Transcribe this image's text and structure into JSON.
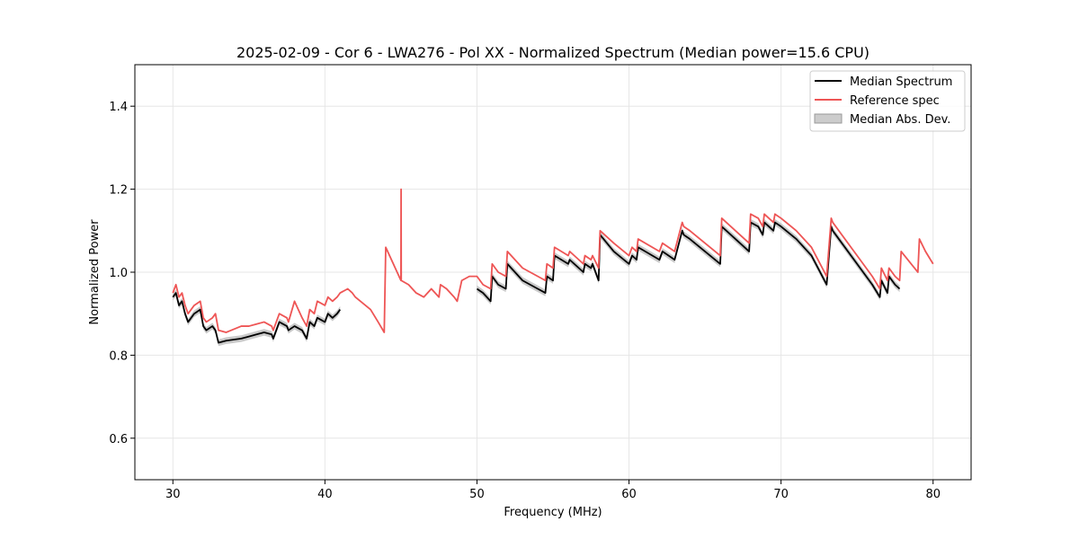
{
  "chart_data": {
    "type": "line",
    "title": "2025-02-09 - Cor 6 - LWA276 - Pol XX - Normalized Spectrum (Median power=15.6 CPU)",
    "xlabel": "Frequency (MHz)",
    "ylabel": "Normalized Power",
    "xlim": [
      27.5,
      82.5
    ],
    "ylim": [
      0.5,
      1.5
    ],
    "xticks": [
      30,
      40,
      50,
      60,
      70,
      80
    ],
    "yticks": [
      0.6,
      0.8,
      1.0,
      1.2,
      1.4
    ],
    "xtick_labels": [
      "30",
      "40",
      "50",
      "60",
      "70",
      "80"
    ],
    "ytick_labels": [
      "0.6",
      "0.8",
      "1.0",
      "1.2",
      "1.4"
    ],
    "grid": true,
    "legend_position": "top-right",
    "colors": {
      "median": "#000000",
      "reference": "#ee5555",
      "mad": "#bbbbbb"
    },
    "series": [
      {
        "name": "Median Spectrum",
        "x": [
          30.0,
          30.2,
          30.4,
          30.6,
          30.8,
          31.0,
          31.2,
          31.4,
          31.8,
          32.0,
          32.2,
          32.6,
          32.8,
          33.0,
          33.5,
          34.5,
          35.0,
          35.5,
          36.0,
          36.5,
          36.6,
          37.0,
          37.5,
          37.6,
          38.0,
          38.5,
          38.8,
          39.0,
          39.3,
          39.5,
          40.0,
          40.2,
          40.5,
          40.8,
          41.0,
          null,
          50.0,
          50.4,
          50.9,
          51.0,
          51.4,
          51.9,
          52.0,
          52.5,
          53.0,
          54.0,
          54.5,
          54.6,
          55.0,
          55.1,
          56.0,
          56.1,
          57.0,
          57.1,
          57.5,
          57.6,
          58.0,
          58.1,
          59.0,
          60.0,
          60.2,
          60.5,
          60.6,
          62.0,
          62.2,
          63.0,
          63.5,
          63.6,
          64.0,
          65.0,
          66.0,
          66.1,
          67.0,
          67.9,
          68.0,
          68.5,
          68.8,
          68.9,
          69.5,
          69.6,
          70.0,
          71.0,
          72.0,
          73.0,
          73.3,
          73.4,
          74.0,
          75.0,
          76.0,
          76.5,
          76.6,
          77.0,
          77.1,
          77.5,
          77.8
        ],
        "y": [
          0.94,
          0.95,
          0.92,
          0.93,
          0.9,
          0.88,
          0.89,
          0.9,
          0.91,
          0.87,
          0.86,
          0.87,
          0.86,
          0.83,
          0.835,
          0.84,
          0.845,
          0.85,
          0.855,
          0.85,
          0.84,
          0.88,
          0.87,
          0.86,
          0.87,
          0.86,
          0.84,
          0.88,
          0.87,
          0.89,
          0.88,
          0.9,
          0.89,
          0.9,
          0.91,
          null,
          0.96,
          0.95,
          0.93,
          0.99,
          0.97,
          0.96,
          1.02,
          1.0,
          0.98,
          0.96,
          0.95,
          0.99,
          0.98,
          1.04,
          1.02,
          1.03,
          1.0,
          1.02,
          1.01,
          1.02,
          0.98,
          1.09,
          1.05,
          1.02,
          1.04,
          1.03,
          1.06,
          1.03,
          1.05,
          1.03,
          1.1,
          1.09,
          1.08,
          1.05,
          1.02,
          1.11,
          1.08,
          1.05,
          1.12,
          1.11,
          1.09,
          1.12,
          1.1,
          1.12,
          1.11,
          1.08,
          1.04,
          0.97,
          1.11,
          1.1,
          1.07,
          1.02,
          0.97,
          0.94,
          0.98,
          0.95,
          0.99,
          0.97,
          0.96
        ]
      },
      {
        "name": "Reference spec",
        "x": [
          30.0,
          30.2,
          30.4,
          30.6,
          30.8,
          31.0,
          31.2,
          31.4,
          31.8,
          32.0,
          32.2,
          32.6,
          32.8,
          33.0,
          33.5,
          34.5,
          35.0,
          35.5,
          36.0,
          36.5,
          36.6,
          37.0,
          37.5,
          37.6,
          38.0,
          38.5,
          38.8,
          39.0,
          39.3,
          39.5,
          40.0,
          40.2,
          40.5,
          40.8,
          41.0,
          41.5,
          41.8,
          42.0,
          43.0,
          43.5,
          43.9,
          44.0,
          45.0,
          45.01,
          45.02,
          45.5,
          46.0,
          46.5,
          47.0,
          47.5,
          47.6,
          48.0,
          48.5,
          48.7,
          49.0,
          49.5,
          50.0,
          50.4,
          50.9,
          51.0,
          51.4,
          51.9,
          52.0,
          52.5,
          53.0,
          54.0,
          54.5,
          54.6,
          55.0,
          55.1,
          56.0,
          56.1,
          57.0,
          57.1,
          57.5,
          57.6,
          58.0,
          58.1,
          59.0,
          60.0,
          60.2,
          60.5,
          60.6,
          62.0,
          62.2,
          63.0,
          63.5,
          63.6,
          64.0,
          65.0,
          66.0,
          66.1,
          67.0,
          67.9,
          68.0,
          68.5,
          68.8,
          68.9,
          69.5,
          69.6,
          70.0,
          71.0,
          72.0,
          73.0,
          73.3,
          73.4,
          74.0,
          75.0,
          76.0,
          76.5,
          76.6,
          77.0,
          77.1,
          77.5,
          77.8,
          77.9,
          79.0,
          79.1,
          79.5,
          80.0
        ],
        "y": [
          0.95,
          0.97,
          0.94,
          0.95,
          0.92,
          0.9,
          0.91,
          0.92,
          0.93,
          0.89,
          0.88,
          0.89,
          0.9,
          0.86,
          0.855,
          0.87,
          0.87,
          0.875,
          0.88,
          0.87,
          0.86,
          0.9,
          0.89,
          0.88,
          0.93,
          0.89,
          0.87,
          0.91,
          0.9,
          0.93,
          0.92,
          0.94,
          0.93,
          0.94,
          0.95,
          0.96,
          0.95,
          0.94,
          0.91,
          0.88,
          0.855,
          1.06,
          0.98,
          1.2,
          0.98,
          0.97,
          0.95,
          0.94,
          0.96,
          0.94,
          0.97,
          0.96,
          0.94,
          0.93,
          0.98,
          0.99,
          0.99,
          0.97,
          0.96,
          1.02,
          1.0,
          0.99,
          1.05,
          1.03,
          1.01,
          0.99,
          0.98,
          1.02,
          1.01,
          1.06,
          1.04,
          1.05,
          1.02,
          1.04,
          1.03,
          1.04,
          1.01,
          1.1,
          1.07,
          1.04,
          1.06,
          1.05,
          1.08,
          1.05,
          1.07,
          1.05,
          1.12,
          1.11,
          1.1,
          1.07,
          1.04,
          1.13,
          1.1,
          1.07,
          1.14,
          1.13,
          1.11,
          1.14,
          1.12,
          1.14,
          1.13,
          1.1,
          1.06,
          0.99,
          1.13,
          1.12,
          1.09,
          1.04,
          0.99,
          0.96,
          1.01,
          0.98,
          1.01,
          0.99,
          0.98,
          1.05,
          1.0,
          1.08,
          1.05,
          1.02
        ]
      },
      {
        "name": "Median Abs. Dev.",
        "mad": 0.008
      }
    ]
  }
}
